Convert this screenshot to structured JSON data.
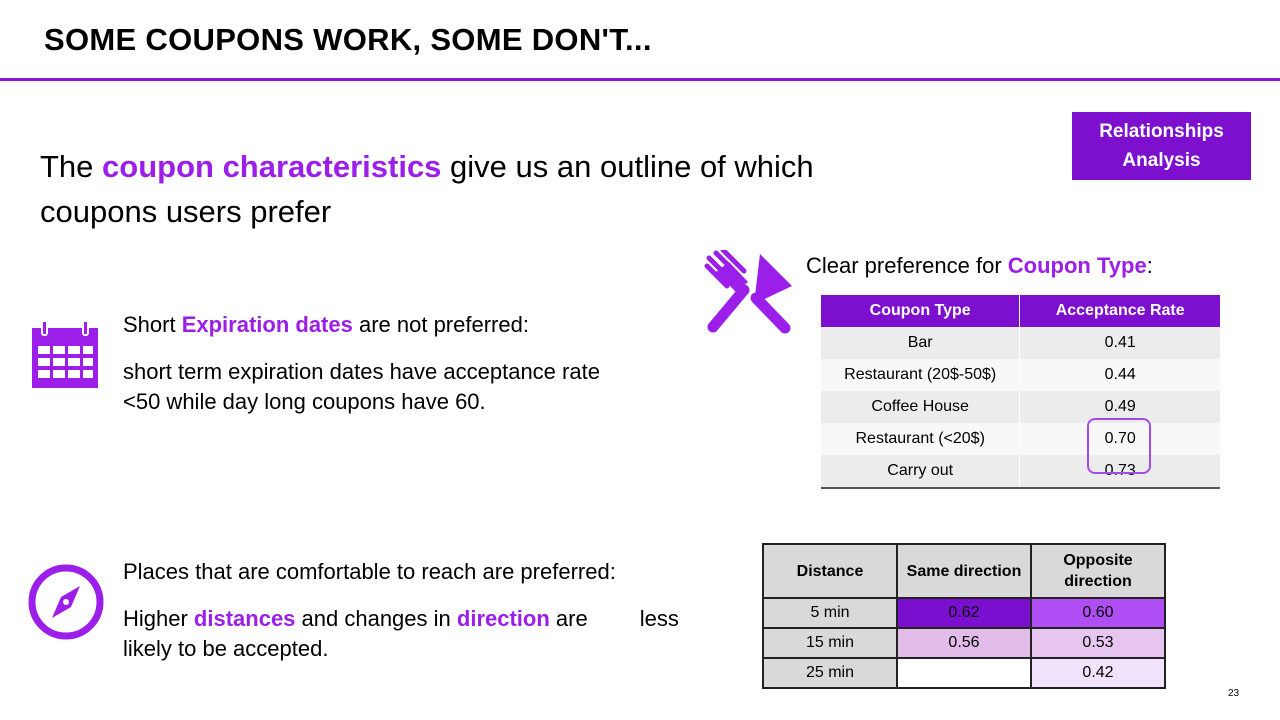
{
  "slide": {
    "title": "SOME COUPONS WORK, SOME DON'T...",
    "tag": "Relationships Analysis",
    "page_number": "23"
  },
  "intro": {
    "part1": "The ",
    "highlight": "coupon characteristics",
    "part2": " give us an outline of which coupons users prefer"
  },
  "expiration": {
    "head_pre": "Short ",
    "head_highlight": "Expiration dates",
    "head_post": " are not preferred:",
    "body": "short term expiration dates have acceptance rate <50 while day long coupons have 60."
  },
  "distance": {
    "head": "Places that are comfortable to reach are preferred:",
    "body_pre": "Higher ",
    "body_hl1": "distances",
    "body_mid": " and changes in ",
    "body_hl2": "direction",
    "body_post1": " are",
    "body_post2": "less likely to be accepted."
  },
  "coupon_type": {
    "head_pre": "Clear preference for ",
    "head_highlight": "Coupon Type",
    "head_post": ":",
    "columns": [
      "Coupon Type",
      "Acceptance Rate"
    ],
    "rows": [
      [
        "Bar",
        "0.41"
      ],
      [
        "Restaurant (20$-50$)",
        "0.44"
      ],
      [
        "Coffee House",
        "0.49"
      ],
      [
        "Restaurant (<20$)",
        "0.70"
      ],
      [
        "Carry out",
        "0.73"
      ]
    ]
  },
  "distance_table": {
    "columns": [
      "Distance",
      "Same direction",
      "Opposite direction"
    ],
    "rows": [
      {
        "distance": "5 min",
        "same": "0.62",
        "opposite": "0.60",
        "same_color": "#7a0fcf",
        "opposite_color": "#b04ef5"
      },
      {
        "distance": "15 min",
        "same": "0.56",
        "opposite": "0.53",
        "same_color": "#e2bce8",
        "opposite_color": "#e6c6ee"
      },
      {
        "distance": "25 min",
        "same": "",
        "opposite": "0.42",
        "same_color": "#ffffff",
        "opposite_color": "#f1e3fb"
      }
    ]
  },
  "icons": {
    "calendar": "calendar-icon",
    "cutlery": "fork-knife-icon",
    "compass": "compass-icon"
  },
  "colors": {
    "accent": "#9b1fe8",
    "header_fill": "#7d0fcf",
    "rule": "#8a16d6"
  }
}
